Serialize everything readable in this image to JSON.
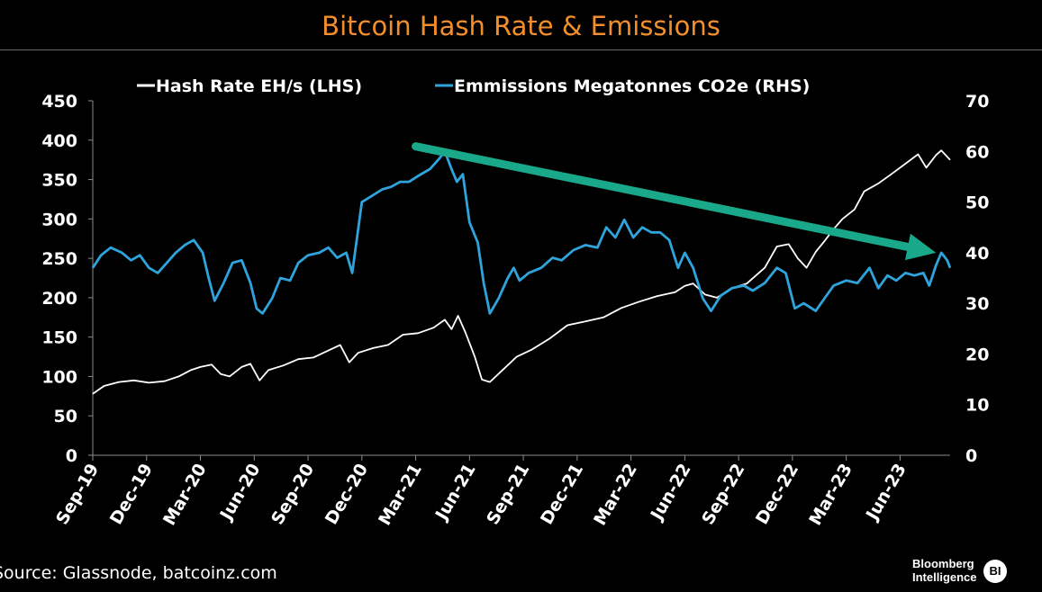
{
  "chart_data": {
    "type": "line",
    "title": "Bitcoin Hash Rate & Emissions",
    "xlabel": "",
    "ylabel_left": "",
    "ylabel_right": "",
    "x_ticks": [
      "Sep-19",
      "Dec-19",
      "Mar-20",
      "Jun-20",
      "Sep-20",
      "Dec-20",
      "Mar-21",
      "Jun-21",
      "Sep-21",
      "Dec-21",
      "Mar-22",
      "Jun-22",
      "Sep-22",
      "Dec-22",
      "Mar-23",
      "Jun-23"
    ],
    "y_left": {
      "ylim": [
        0,
        450
      ],
      "ticks": [
        0,
        50,
        100,
        150,
        200,
        250,
        300,
        350,
        400,
        450
      ]
    },
    "y_right": {
      "ylim": [
        0,
        70
      ],
      "ticks": [
        0,
        10,
        20,
        30,
        40,
        50,
        60,
        70
      ]
    },
    "legend": {
      "placement": "top"
    },
    "grid": false,
    "series": [
      {
        "name": "Hash Rate EH/s (LHS)",
        "axis": "left",
        "color": "#ffffff",
        "points": [
          [
            "2019-09-01",
            78
          ],
          [
            "2019-09-20",
            88
          ],
          [
            "2019-10-15",
            93
          ],
          [
            "2019-11-10",
            95
          ],
          [
            "2019-12-05",
            92
          ],
          [
            "2020-01-01",
            94
          ],
          [
            "2020-01-25",
            100
          ],
          [
            "2020-02-15",
            108
          ],
          [
            "2020-03-01",
            112
          ],
          [
            "2020-03-20",
            115
          ],
          [
            "2020-04-05",
            103
          ],
          [
            "2020-04-20",
            100
          ],
          [
            "2020-05-10",
            112
          ],
          [
            "2020-05-25",
            116
          ],
          [
            "2020-06-10",
            95
          ],
          [
            "2020-06-25",
            108
          ],
          [
            "2020-07-20",
            114
          ],
          [
            "2020-08-15",
            122
          ],
          [
            "2020-09-10",
            124
          ],
          [
            "2020-10-05",
            133
          ],
          [
            "2020-10-25",
            140
          ],
          [
            "2020-11-10",
            118
          ],
          [
            "2020-11-25",
            130
          ],
          [
            "2020-12-20",
            136
          ],
          [
            "2021-01-15",
            140
          ],
          [
            "2021-02-10",
            153
          ],
          [
            "2021-03-05",
            155
          ],
          [
            "2021-04-01",
            162
          ],
          [
            "2021-04-20",
            172
          ],
          [
            "2021-05-01",
            160
          ],
          [
            "2021-05-12",
            177
          ],
          [
            "2021-05-25",
            155
          ],
          [
            "2021-06-10",
            125
          ],
          [
            "2021-06-22",
            96
          ],
          [
            "2021-07-05",
            93
          ],
          [
            "2021-07-25",
            107
          ],
          [
            "2021-08-20",
            125
          ],
          [
            "2021-09-15",
            134
          ],
          [
            "2021-10-15",
            148
          ],
          [
            "2021-11-15",
            165
          ],
          [
            "2021-12-15",
            170
          ],
          [
            "2022-01-15",
            175
          ],
          [
            "2022-02-15",
            187
          ],
          [
            "2022-03-15",
            195
          ],
          [
            "2022-04-15",
            202
          ],
          [
            "2022-05-15",
            207
          ],
          [
            "2022-06-01",
            215
          ],
          [
            "2022-06-15",
            218
          ],
          [
            "2022-07-05",
            204
          ],
          [
            "2022-07-25",
            200
          ],
          [
            "2022-08-20",
            212
          ],
          [
            "2022-09-15",
            218
          ],
          [
            "2022-10-15",
            238
          ],
          [
            "2022-11-05",
            265
          ],
          [
            "2022-11-25",
            268
          ],
          [
            "2022-12-10",
            250
          ],
          [
            "2022-12-25",
            238
          ],
          [
            "2023-01-10",
            258
          ],
          [
            "2023-01-25",
            272
          ],
          [
            "2023-02-10",
            287
          ],
          [
            "2023-02-25",
            300
          ],
          [
            "2023-03-15",
            312
          ],
          [
            "2023-04-01",
            335
          ],
          [
            "2023-04-25",
            345
          ],
          [
            "2023-05-15",
            356
          ],
          [
            "2023-06-10",
            370
          ],
          [
            "2023-07-01",
            382
          ],
          [
            "2023-07-15",
            365
          ],
          [
            "2023-08-01",
            381
          ],
          [
            "2023-08-10",
            387
          ],
          [
            "2023-08-25",
            375
          ]
        ]
      },
      {
        "name": "Emmissions Megatonnes CO2e (RHS)",
        "axis": "right",
        "color": "#2fa4dc",
        "points": [
          [
            "2019-09-01",
            37
          ],
          [
            "2019-09-15",
            39.5
          ],
          [
            "2019-10-01",
            41
          ],
          [
            "2019-10-20",
            40
          ],
          [
            "2019-11-05",
            38.5
          ],
          [
            "2019-11-20",
            39.5
          ],
          [
            "2019-12-05",
            37
          ],
          [
            "2019-12-20",
            36
          ],
          [
            "2020-01-05",
            38
          ],
          [
            "2020-01-20",
            40
          ],
          [
            "2020-02-05",
            41.5
          ],
          [
            "2020-02-20",
            42.5
          ],
          [
            "2020-03-05",
            40
          ],
          [
            "2020-03-15",
            35
          ],
          [
            "2020-03-25",
            30.5
          ],
          [
            "2020-04-10",
            34
          ],
          [
            "2020-04-25",
            38
          ],
          [
            "2020-05-10",
            38.5
          ],
          [
            "2020-05-25",
            34
          ],
          [
            "2020-06-05",
            29
          ],
          [
            "2020-06-15",
            28
          ],
          [
            "2020-07-01",
            31
          ],
          [
            "2020-07-15",
            35
          ],
          [
            "2020-08-01",
            34.5
          ],
          [
            "2020-08-15",
            38
          ],
          [
            "2020-09-01",
            39.5
          ],
          [
            "2020-09-20",
            40
          ],
          [
            "2020-10-05",
            41
          ],
          [
            "2020-10-20",
            39
          ],
          [
            "2020-11-05",
            40
          ],
          [
            "2020-11-15",
            36
          ],
          [
            "2020-12-01",
            50
          ],
          [
            "2020-12-15",
            51
          ],
          [
            "2021-01-05",
            52.5
          ],
          [
            "2021-01-20",
            53
          ],
          [
            "2021-02-05",
            54
          ],
          [
            "2021-02-20",
            54
          ],
          [
            "2021-03-10",
            55.5
          ],
          [
            "2021-03-25",
            56.5
          ],
          [
            "2021-04-10",
            58.5
          ],
          [
            "2021-04-20",
            60
          ],
          [
            "2021-05-01",
            56.5
          ],
          [
            "2021-05-10",
            54
          ],
          [
            "2021-05-20",
            55.5
          ],
          [
            "2021-06-01",
            46
          ],
          [
            "2021-06-15",
            42
          ],
          [
            "2021-06-25",
            34
          ],
          [
            "2021-07-05",
            28
          ],
          [
            "2021-07-20",
            31
          ],
          [
            "2021-08-05",
            35
          ],
          [
            "2021-08-15",
            37
          ],
          [
            "2021-08-25",
            34.5
          ],
          [
            "2021-09-10",
            36
          ],
          [
            "2021-10-01",
            37
          ],
          [
            "2021-10-20",
            39
          ],
          [
            "2021-11-05",
            38.5
          ],
          [
            "2021-11-25",
            40.5
          ],
          [
            "2021-12-15",
            41.5
          ],
          [
            "2022-01-05",
            41
          ],
          [
            "2022-01-20",
            45
          ],
          [
            "2022-02-05",
            43
          ],
          [
            "2022-02-20",
            46.5
          ],
          [
            "2022-03-05",
            43
          ],
          [
            "2022-03-20",
            45
          ],
          [
            "2022-04-05",
            44
          ],
          [
            "2022-04-20",
            44
          ],
          [
            "2022-05-05",
            42.5
          ],
          [
            "2022-05-20",
            37
          ],
          [
            "2022-06-01",
            40
          ],
          [
            "2022-06-15",
            37
          ],
          [
            "2022-07-01",
            31
          ],
          [
            "2022-07-15",
            28.5
          ],
          [
            "2022-08-01",
            31.5
          ],
          [
            "2022-08-20",
            33
          ],
          [
            "2022-09-10",
            33.5
          ],
          [
            "2022-09-25",
            32.5
          ],
          [
            "2022-10-15",
            34
          ],
          [
            "2022-11-05",
            37
          ],
          [
            "2022-11-20",
            36
          ],
          [
            "2022-12-05",
            29
          ],
          [
            "2022-12-20",
            30
          ],
          [
            "2023-01-10",
            28.5
          ],
          [
            "2023-01-25",
            31
          ],
          [
            "2023-02-10",
            33.5
          ],
          [
            "2023-03-01",
            34.5
          ],
          [
            "2023-03-20",
            34
          ],
          [
            "2023-04-10",
            37
          ],
          [
            "2023-04-25",
            33
          ],
          [
            "2023-05-10",
            35.5
          ],
          [
            "2023-05-25",
            34.5
          ],
          [
            "2023-06-10",
            36
          ],
          [
            "2023-06-25",
            35.5
          ],
          [
            "2023-07-10",
            36
          ],
          [
            "2023-07-20",
            33.5
          ],
          [
            "2023-08-01",
            37.5
          ],
          [
            "2023-08-10",
            40
          ],
          [
            "2023-08-20",
            38.5
          ],
          [
            "2023-08-25",
            37
          ]
        ]
      }
    ],
    "annotations": [
      {
        "type": "arrow",
        "color": "#1aa88a",
        "from": [
          "2021-03-01",
          61
        ],
        "to": [
          "2023-08-01",
          40
        ]
      }
    ]
  },
  "footer": {
    "source": "Source: Glassnode, batcoinz.com",
    "logo_line1": "Bloomberg",
    "logo_line2": "Intelligence",
    "logo_badge": "BI"
  }
}
